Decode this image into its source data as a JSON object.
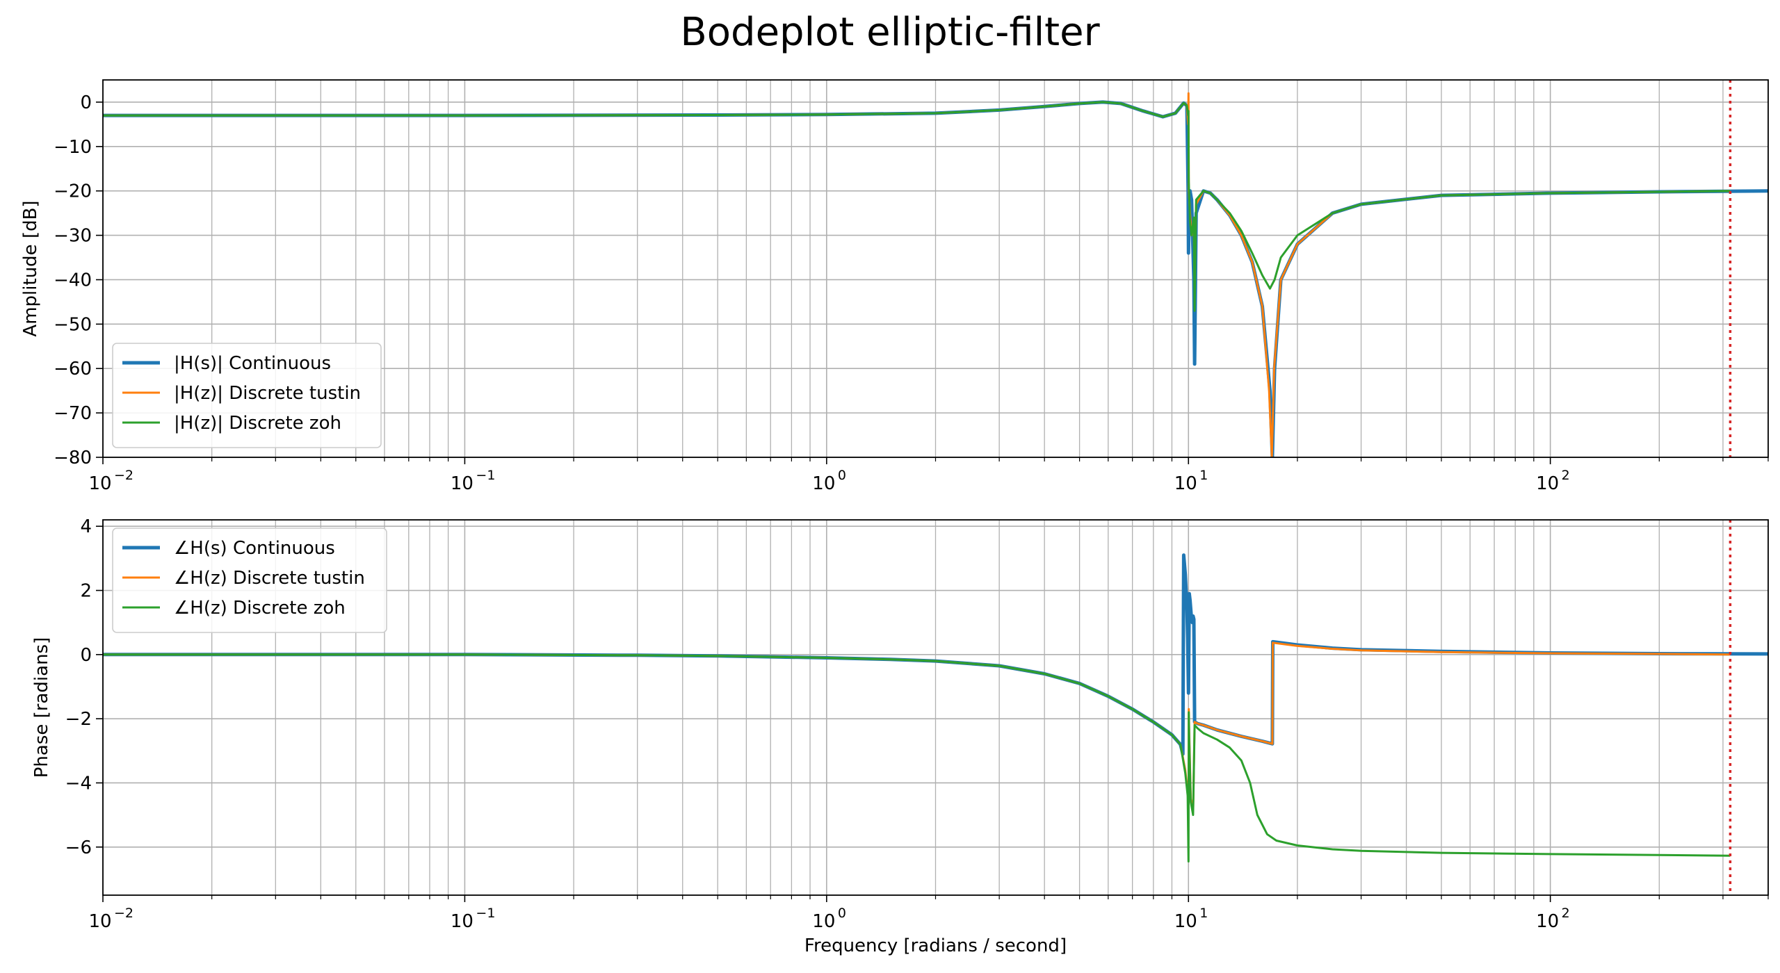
{
  "title": "Bodeplot elliptic-filter",
  "colors": {
    "continuous": "#1f77b4",
    "tustin": "#ff7f0e",
    "zoh": "#2ca02c",
    "nyquist_line": "#d62728",
    "grid": "#b0b0b0"
  },
  "chart_data": [
    {
      "type": "line",
      "title": "",
      "xlabel": "",
      "ylabel": "Amplitude [dB]",
      "xscale": "log",
      "xlim": [
        0.01,
        400
      ],
      "ylim": [
        -80,
        5
      ],
      "yticks": [
        0,
        -10,
        -20,
        -30,
        -40,
        -50,
        -60,
        -70,
        -80
      ],
      "xticks": [
        {
          "value": 0.01,
          "base": "10",
          "exp": "−2"
        },
        {
          "value": 0.1,
          "base": "10",
          "exp": "−1"
        },
        {
          "value": 1,
          "base": "10",
          "exp": "0"
        },
        {
          "value": 10,
          "base": "10",
          "exp": "1"
        },
        {
          "value": 100,
          "base": "10",
          "exp": "2"
        }
      ],
      "grid": "on (major and minor)",
      "legend_position": "lower-left",
      "vline_x": 314.16,
      "series": [
        {
          "name": "|H(s)| Continuous",
          "key": "continuous",
          "width": 2.5,
          "x": [
            0.01,
            0.1,
            0.5,
            1,
            2,
            3,
            4,
            5,
            5.8,
            6.5,
            7.5,
            8.5,
            9.2,
            9.7,
            9.9,
            9.98,
            10.0,
            10.02,
            10.1,
            10.2,
            10.35,
            10.4,
            10.5,
            11,
            11.5,
            12,
            13,
            14,
            15,
            16,
            16.8,
            17.05,
            17.3,
            18,
            20,
            25,
            30,
            50,
            100,
            200,
            400
          ],
          "y": [
            -3,
            -3,
            -2.9,
            -2.8,
            -2.5,
            -1.8,
            -1,
            -0.3,
            0,
            -0.3,
            -2,
            -3.3,
            -2.5,
            -0.2,
            -0.8,
            -20,
            -34,
            -30,
            -20,
            -22,
            -40,
            -59,
            -25,
            -20,
            -20.5,
            -22,
            -25.5,
            -30,
            -36,
            -46,
            -65,
            -80,
            -60,
            -40,
            -32,
            -25,
            -23,
            -21,
            -20.5,
            -20.2,
            -20
          ]
        },
        {
          "name": "|H(z)| Discrete tustin",
          "key": "tustin",
          "width": 1.5,
          "x": [
            0.01,
            0.1,
            0.5,
            1,
            2,
            3,
            4,
            5,
            5.8,
            6.5,
            7.5,
            8.5,
            9.2,
            9.7,
            9.9,
            9.98,
            10.0,
            10.02,
            10.1,
            10.2,
            10.35,
            10.4,
            10.5,
            11,
            11.5,
            12,
            13,
            14,
            15,
            16,
            16.7,
            17.0,
            17.25,
            18,
            20,
            25,
            30,
            50,
            100,
            200,
            314
          ],
          "y": [
            -3,
            -3,
            -2.9,
            -2.8,
            -2.5,
            -1.8,
            -1,
            -0.3,
            0,
            -0.3,
            -2,
            -3.3,
            -2.5,
            -0.2,
            -0.8,
            -5,
            2,
            -20,
            -25,
            -30,
            -28,
            -40,
            -23,
            -20,
            -20.5,
            -22,
            -25.5,
            -30,
            -36,
            -46,
            -65,
            -80,
            -60,
            -40,
            -32,
            -25,
            -23,
            -21,
            -20.5,
            -20.2,
            -20
          ]
        },
        {
          "name": "|H(z)| Discrete zoh",
          "key": "zoh",
          "width": 1.5,
          "x": [
            0.01,
            0.1,
            0.5,
            1,
            2,
            3,
            4,
            5,
            5.8,
            6.5,
            7.5,
            8.5,
            9.2,
            9.7,
            9.9,
            9.98,
            10.0,
            10.02,
            10.1,
            10.2,
            10.35,
            10.4,
            10.5,
            11,
            11.5,
            12,
            13,
            14,
            15,
            16,
            16.8,
            17.3,
            18,
            20,
            25,
            30,
            50,
            100,
            200,
            314
          ],
          "y": [
            -3,
            -3,
            -2.9,
            -2.8,
            -2.5,
            -1.8,
            -1,
            -0.3,
            0,
            -0.3,
            -2,
            -3.3,
            -2.5,
            -0.2,
            -0.8,
            -3,
            -2,
            -18,
            -27,
            -30,
            -26,
            -47,
            -22,
            -20,
            -20.5,
            -22,
            -25,
            -29,
            -34,
            -39,
            -42,
            -40,
            -35,
            -30,
            -25,
            -23,
            -21,
            -20.5,
            -20.2,
            -20
          ]
        }
      ]
    },
    {
      "type": "line",
      "title": "",
      "xlabel": "Frequency [radians / second]",
      "ylabel": "Phase [radians]",
      "xscale": "log",
      "xlim": [
        0.01,
        400
      ],
      "ylim": [
        -7.5,
        4.2
      ],
      "yticks": [
        4,
        2,
        0,
        -2,
        -4,
        -6
      ],
      "xticks": [
        {
          "value": 0.01,
          "base": "10",
          "exp": "−2"
        },
        {
          "value": 0.1,
          "base": "10",
          "exp": "−1"
        },
        {
          "value": 1,
          "base": "10",
          "exp": "0"
        },
        {
          "value": 10,
          "base": "10",
          "exp": "1"
        },
        {
          "value": 100,
          "base": "10",
          "exp": "2"
        }
      ],
      "grid": "on (major and minor)",
      "legend_position": "upper-left",
      "vline_x": 314.16,
      "series": [
        {
          "name": "∠H(s) Continuous",
          "key": "continuous",
          "width": 2.5,
          "x": [
            0.01,
            0.1,
            0.3,
            0.5,
            1,
            1.5,
            2,
            3,
            4,
            5,
            6,
            7,
            8,
            9,
            9.5,
            9.65,
            9.7,
            9.8,
            9.9,
            9.95,
            10.0,
            10.05,
            10.1,
            10.2,
            10.25,
            10.3,
            10.35,
            10.4,
            10.6,
            11,
            12,
            14,
            16,
            17.05,
            17.1,
            20,
            25,
            30,
            50,
            100,
            200,
            400
          ],
          "y": [
            0,
            0,
            -0.02,
            -0.04,
            -0.1,
            -0.15,
            -0.2,
            -0.35,
            -0.6,
            -0.9,
            -1.3,
            -1.7,
            -2.1,
            -2.5,
            -2.8,
            -3.1,
            3.1,
            2.5,
            1.5,
            0.5,
            -1.2,
            1.9,
            1.7,
            1.1,
            1.0,
            1.2,
            1.1,
            -2.1,
            -2.15,
            -2.2,
            -2.35,
            -2.55,
            -2.7,
            -2.78,
            0.4,
            0.3,
            0.2,
            0.15,
            0.1,
            0.05,
            0.03,
            0.02
          ]
        },
        {
          "name": "∠H(z) Discrete tustin",
          "key": "tustin",
          "width": 1.5,
          "x": [
            0.01,
            0.1,
            0.3,
            0.5,
            1,
            1.5,
            2,
            3,
            4,
            5,
            6,
            7,
            8,
            9,
            9.5,
            9.8,
            9.95,
            10.0,
            10.02,
            10.05,
            10.15,
            10.3,
            10.4,
            10.6,
            11,
            12,
            14,
            16,
            17.05,
            17.1,
            20,
            25,
            30,
            50,
            100,
            200,
            314
          ],
          "y": [
            0,
            0,
            -0.02,
            -0.04,
            -0.1,
            -0.15,
            -0.2,
            -0.35,
            -0.6,
            -0.9,
            -1.3,
            -1.7,
            -2.1,
            -2.5,
            -2.8,
            -3.6,
            -4.3,
            -4.8,
            -1.7,
            -2.5,
            -4.5,
            -4.9,
            -2.1,
            -2.15,
            -2.2,
            -2.35,
            -2.55,
            -2.7,
            -2.78,
            0.37,
            0.27,
            0.18,
            0.13,
            0.08,
            0.04,
            0.02,
            0
          ]
        },
        {
          "name": "∠H(z) Discrete zoh",
          "key": "zoh",
          "width": 1.5,
          "x": [
            0.01,
            0.1,
            0.3,
            0.5,
            1,
            1.5,
            2,
            3,
            4,
            5,
            6,
            7,
            8,
            9,
            9.5,
            9.8,
            9.95,
            10.0,
            10.02,
            10.05,
            10.15,
            10.3,
            10.4,
            10.6,
            11,
            12,
            13,
            14,
            14.8,
            15.5,
            16.5,
            17.5,
            20,
            25,
            30,
            50,
            100,
            200,
            314
          ],
          "y": [
            0,
            0,
            -0.02,
            -0.04,
            -0.1,
            -0.15,
            -0.2,
            -0.35,
            -0.6,
            -0.9,
            -1.3,
            -1.7,
            -2.1,
            -2.5,
            -2.8,
            -3.7,
            -4.4,
            -6.45,
            -1.8,
            -2.7,
            -4.6,
            -5.0,
            -2.2,
            -2.3,
            -2.45,
            -2.65,
            -2.9,
            -3.3,
            -4.0,
            -5.0,
            -5.6,
            -5.8,
            -5.95,
            -6.07,
            -6.12,
            -6.18,
            -6.22,
            -6.25,
            -6.27
          ]
        }
      ]
    }
  ]
}
